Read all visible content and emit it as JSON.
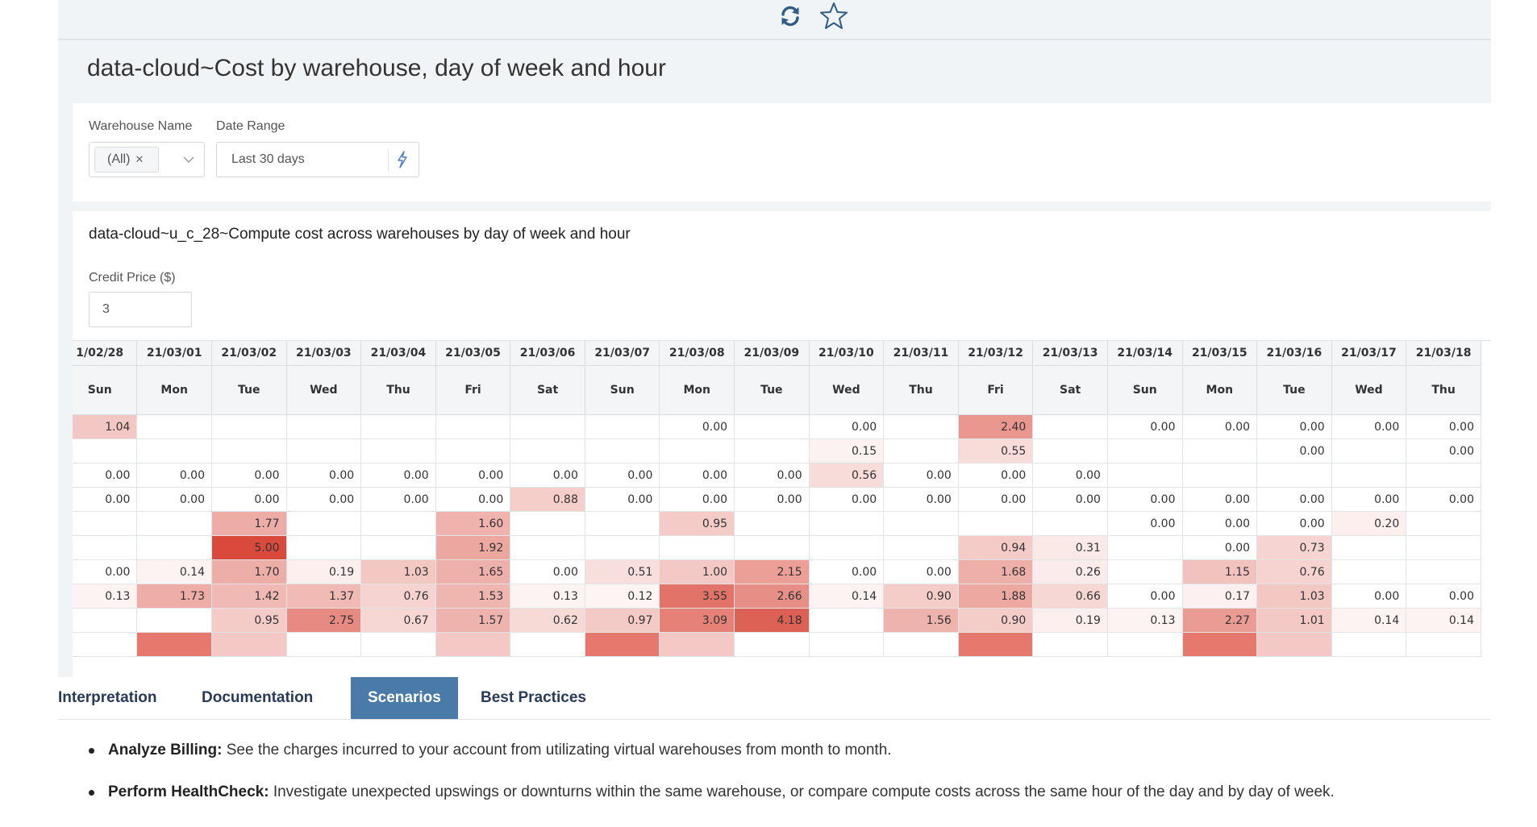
{
  "dashboard": {
    "title": "data-cloud~Cost by warehouse, day of week and hour",
    "toolbar": {
      "refresh_icon": "refresh-icon",
      "favorite_icon": "star-icon"
    }
  },
  "filters": {
    "warehouse_label": "Warehouse Name",
    "warehouse_chip": "(All)",
    "date_label": "Date Range",
    "date_value": "Last 30 days"
  },
  "chart": {
    "title": "data-cloud~u_c_28~Compute cost across warehouses by day of week and hour",
    "credit_label": "Credit Price ($)",
    "credit_value": "3"
  },
  "chart_data": {
    "type": "heatmap",
    "color_scale": {
      "low": "#ffffff",
      "high": "#d94a3c",
      "max": 5.0
    },
    "dates": [
      "1/02/28",
      "21/03/01",
      "21/03/02",
      "21/03/03",
      "21/03/04",
      "21/03/05",
      "21/03/06",
      "21/03/07",
      "21/03/08",
      "21/03/09",
      "21/03/10",
      "21/03/11",
      "21/03/12",
      "21/03/13",
      "21/03/14",
      "21/03/15",
      "21/03/16",
      "21/03/17",
      "21/03/18"
    ],
    "days": [
      "Sun",
      "Mon",
      "Tue",
      "Wed",
      "Thu",
      "Fri",
      "Sat",
      "Sun",
      "Mon",
      "Tue",
      "Wed",
      "Thu",
      "Fri",
      "Sat",
      "Sun",
      "Mon",
      "Tue",
      "Wed",
      "Thu"
    ],
    "rows": [
      [
        "1.04",
        "",
        "",
        "",
        "",
        "",
        "",
        "",
        "0.00",
        "",
        "0.00",
        "",
        "2.40",
        "",
        "0.00",
        "0.00",
        "0.00",
        "0.00",
        "0.00"
      ],
      [
        "",
        "",
        "",
        "",
        "",
        "",
        "",
        "",
        "",
        "",
        "0.15",
        "",
        "0.55",
        "",
        "",
        "",
        "0.00",
        "",
        "0.00"
      ],
      [
        "0.00",
        "0.00",
        "0.00",
        "0.00",
        "0.00",
        "0.00",
        "0.00",
        "0.00",
        "0.00",
        "0.00",
        "0.56",
        "0.00",
        "0.00",
        "0.00",
        "",
        "",
        "",
        "",
        ""
      ],
      [
        "0.00",
        "0.00",
        "0.00",
        "0.00",
        "0.00",
        "0.00",
        "0.88",
        "0.00",
        "0.00",
        "0.00",
        "0.00",
        "0.00",
        "0.00",
        "0.00",
        "0.00",
        "0.00",
        "0.00",
        "0.00",
        "0.00"
      ],
      [
        "",
        "",
        "1.77",
        "",
        "",
        "1.60",
        "",
        "",
        "0.95",
        "",
        "",
        "",
        "",
        "",
        "0.00",
        "0.00",
        "0.00",
        "0.20",
        ""
      ],
      [
        "",
        "",
        "5.00",
        "",
        "",
        "1.92",
        "",
        "",
        "",
        "",
        "",
        "",
        "0.94",
        "0.31",
        "",
        "0.00",
        "0.73",
        "",
        ""
      ],
      [
        "0.00",
        "0.14",
        "1.70",
        "0.19",
        "1.03",
        "1.65",
        "0.00",
        "0.51",
        "1.00",
        "2.15",
        "0.00",
        "0.00",
        "1.68",
        "0.26",
        "",
        "1.15",
        "0.76",
        "",
        ""
      ],
      [
        "0.13",
        "1.73",
        "1.42",
        "1.37",
        "0.76",
        "1.53",
        "0.13",
        "0.12",
        "3.55",
        "2.66",
        "0.14",
        "0.90",
        "1.88",
        "0.66",
        "0.00",
        "0.17",
        "1.03",
        "0.00",
        "0.00"
      ],
      [
        "",
        "",
        "0.95",
        "2.75",
        "0.67",
        "1.57",
        "0.62",
        "0.97",
        "3.09",
        "4.18",
        "",
        "1.56",
        "0.90",
        "0.19",
        "0.13",
        "2.27",
        "1.01",
        "0.14",
        "0.14"
      ]
    ],
    "partial_row_note": "a further row is cut off at the bottom edge of the scroll area"
  },
  "tabs": [
    {
      "label": "Interpretation",
      "active": false
    },
    {
      "label": "Documentation",
      "active": false
    },
    {
      "label": "Scenarios",
      "active": true
    },
    {
      "label": "Best Practices",
      "active": false
    }
  ],
  "scenarios": [
    {
      "bold": "Analyze Billing:",
      "text": " See the charges incurred to your account from utilizating virtual warehouses from month to month."
    },
    {
      "bold": "Perform HealthCheck:",
      "text": " Investigate unexpected upswings or downturns within the same warehouse, or compare compute costs across the same hour of the day and by day of week."
    }
  ]
}
